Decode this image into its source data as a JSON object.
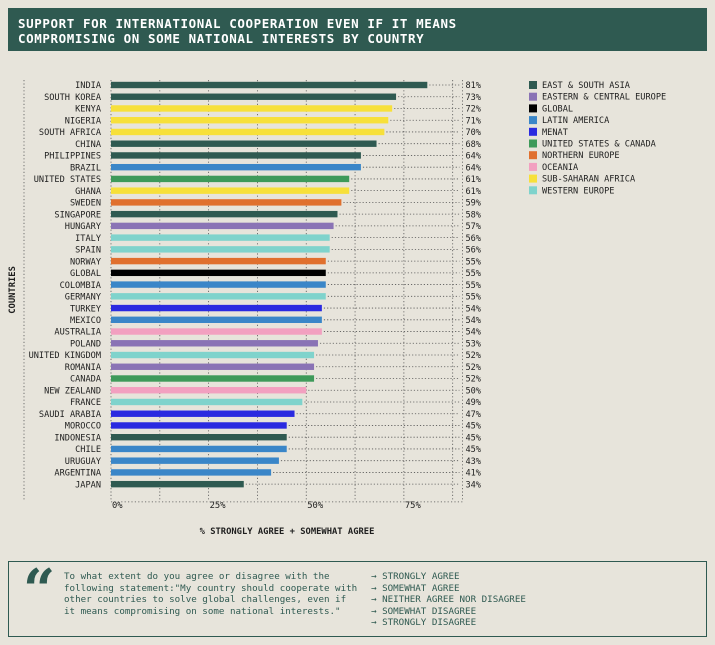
{
  "title_lines": [
    "SUPPORT FOR INTERNATIONAL COOPERATION EVEN IF IT MEANS",
    "COMPROMISING ON SOME NATIONAL INTERESTS BY COUNTRY"
  ],
  "colors": {
    "title_bg": "#2f5a51",
    "background": "#e7e4db",
    "text": "#1e1e1e"
  },
  "chart_data": {
    "type": "bar",
    "orientation": "horizontal",
    "ylabel": "COUNTRIES",
    "xlabel": "% STRONGLY AGREE + SOMEWHAT AGREE",
    "xlim": [
      0,
      90
    ],
    "x_ticks": [
      0,
      25,
      50,
      75
    ],
    "x_tick_labels": [
      "0%",
      "25%",
      "50%",
      "75%"
    ],
    "grid": "vertical dotted",
    "legend_placement": "right",
    "groups": [
      {
        "name": "EAST & SOUTH ASIA",
        "color": "#2f5a51"
      },
      {
        "name": "EASTERN & CENTRAL EUROPE",
        "color": "#8a73b5"
      },
      {
        "name": "GLOBAL",
        "color": "#000000"
      },
      {
        "name": "LATIN AMERICA",
        "color": "#3a86c8"
      },
      {
        "name": "MENAT",
        "color": "#2a2ae0"
      },
      {
        "name": "UNITED STATES & CANADA",
        "color": "#3e9a5a"
      },
      {
        "name": "NORTHERN EUROPE",
        "color": "#e0702e"
      },
      {
        "name": "OCEANIA",
        "color": "#f2a0c0"
      },
      {
        "name": "SUB-SAHARAN AFRICA",
        "color": "#f7e03a"
      },
      {
        "name": "WESTERN EUROPE",
        "color": "#7fd3cc"
      }
    ],
    "bars": [
      {
        "country": "INDIA",
        "value": 81,
        "label": "81%",
        "group": 0
      },
      {
        "country": "SOUTH KOREA",
        "value": 73,
        "label": "73%",
        "group": 0
      },
      {
        "country": "KENYA",
        "value": 72,
        "label": "72%",
        "group": 8
      },
      {
        "country": "NIGERIA",
        "value": 71,
        "label": "71%",
        "group": 8
      },
      {
        "country": "SOUTH AFRICA",
        "value": 70,
        "label": "70%",
        "group": 8
      },
      {
        "country": "CHINA",
        "value": 68,
        "label": "68%",
        "group": 0
      },
      {
        "country": "PHILIPPINES",
        "value": 64,
        "label": "64%",
        "group": 0
      },
      {
        "country": "BRAZIL",
        "value": 64,
        "label": "64%",
        "group": 3
      },
      {
        "country": "UNITED STATES",
        "value": 61,
        "label": "61%",
        "group": 5
      },
      {
        "country": "GHANA",
        "value": 61,
        "label": "61%",
        "group": 8
      },
      {
        "country": "SWEDEN",
        "value": 59,
        "label": "59%",
        "group": 6
      },
      {
        "country": "SINGAPORE",
        "value": 58,
        "label": "58%",
        "group": 0
      },
      {
        "country": "HUNGARY",
        "value": 57,
        "label": "57%",
        "group": 1
      },
      {
        "country": "ITALY",
        "value": 56,
        "label": "56%",
        "group": 9
      },
      {
        "country": "SPAIN",
        "value": 56,
        "label": "56%",
        "group": 9
      },
      {
        "country": "NORWAY",
        "value": 55,
        "label": "55%",
        "group": 6
      },
      {
        "country": "GLOBAL",
        "value": 55,
        "label": "55%",
        "group": 2
      },
      {
        "country": "COLOMBIA",
        "value": 55,
        "label": "55%",
        "group": 3
      },
      {
        "country": "GERMANY",
        "value": 55,
        "label": "55%",
        "group": 9
      },
      {
        "country": "TURKEY",
        "value": 54,
        "label": "54%",
        "group": 4
      },
      {
        "country": "MEXICO",
        "value": 54,
        "label": "54%",
        "group": 3
      },
      {
        "country": "AUSTRALIA",
        "value": 54,
        "label": "54%",
        "group": 7
      },
      {
        "country": "POLAND",
        "value": 53,
        "label": "53%",
        "group": 1
      },
      {
        "country": "UNITED KINGDOM",
        "value": 52,
        "label": "52%",
        "group": 9
      },
      {
        "country": "ROMANIA",
        "value": 52,
        "label": "52%",
        "group": 1
      },
      {
        "country": "CANADA",
        "value": 52,
        "label": "52%",
        "group": 5
      },
      {
        "country": "NEW ZEALAND",
        "value": 50,
        "label": "50%",
        "group": 7
      },
      {
        "country": "FRANCE",
        "value": 49,
        "label": "49%",
        "group": 9
      },
      {
        "country": "SAUDI ARABIA",
        "value": 47,
        "label": "47%",
        "group": 4
      },
      {
        "country": "MOROCCO",
        "value": 45,
        "label": "45%",
        "group": 4
      },
      {
        "country": "INDONESIA",
        "value": 45,
        "label": "45%",
        "group": 0
      },
      {
        "country": "CHILE",
        "value": 45,
        "label": "45%",
        "group": 3
      },
      {
        "country": "URUGUAY",
        "value": 43,
        "label": "43%",
        "group": 3
      },
      {
        "country": "ARGENTINA",
        "value": 41,
        "label": "41%",
        "group": 3
      },
      {
        "country": "JAPAN",
        "value": 34,
        "label": "34%",
        "group": 0
      }
    ]
  },
  "question": {
    "quote_mark": "“",
    "text": "To what extent do you agree or disagree with the following statement:\"My country should cooperate with other countries to solve global challenges, even if it means compromising on some national interests.\"",
    "options": [
      "→ STRONGLY AGREE",
      "→ SOMEWHAT AGREE",
      "→ NEITHER AGREE NOR DISAGREE",
      "→ SOMEWHAT DISAGREE",
      "→ STRONGLY DISAGREE"
    ]
  }
}
